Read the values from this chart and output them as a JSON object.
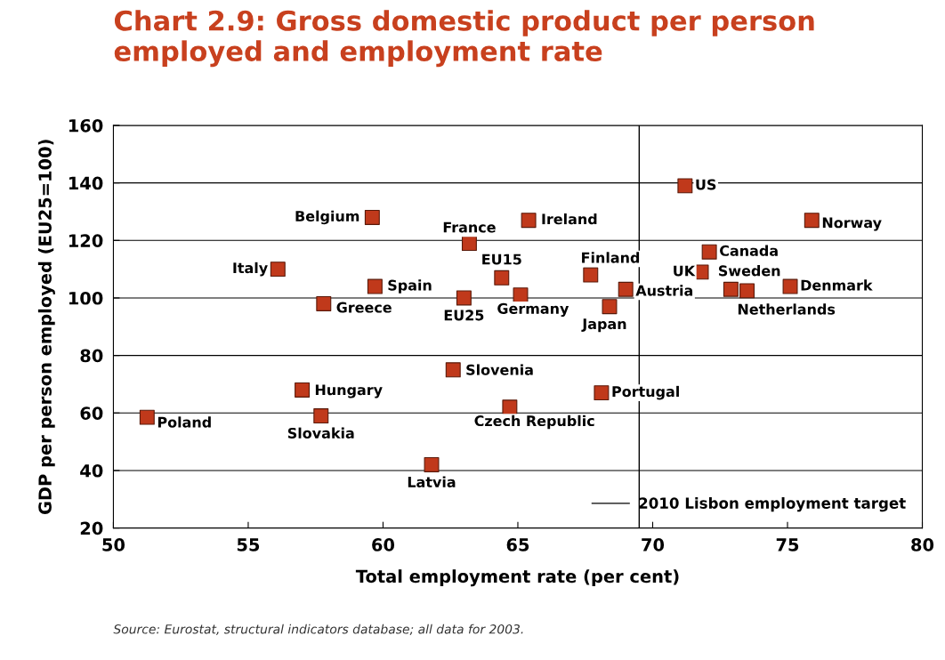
{
  "chart_data": {
    "type": "scatter",
    "title": "Chart 2.9: Gross domestic product per person employed and employment rate",
    "xlabel": "Total employment rate (per cent)",
    "ylabel": "GDP per person employed (EU25=100)",
    "xlim": [
      50,
      80
    ],
    "xticks": [
      50,
      55,
      60,
      65,
      70,
      75,
      80
    ],
    "ylim": [
      20,
      160
    ],
    "yticks": [
      20,
      40,
      60,
      80,
      100,
      120,
      140,
      160
    ],
    "grid": "y",
    "marker": "square",
    "legend": "bottom right",
    "ref_lines": [
      {
        "axis": "x",
        "value": 69.5,
        "label": "2010 Lisbon employment target",
        "color": "#000000"
      }
    ],
    "annotations": [
      "Source: Eurostat, structural indicators database; all data for 2003."
    ],
    "series": [
      {
        "name": "Poland",
        "color": "#c0391b",
        "x": [
          51.25
        ],
        "values": [
          58.5
        ]
      },
      {
        "name": "Italy",
        "color": "#c0391b",
        "x": [
          56.1
        ],
        "values": [
          110
        ]
      },
      {
        "name": "Belgium",
        "color": "#c0391b",
        "x": [
          59.6
        ],
        "values": [
          128
        ]
      },
      {
        "name": "Greece",
        "color": "#c0391b",
        "x": [
          57.8
        ],
        "values": [
          98
        ]
      },
      {
        "name": "Spain",
        "color": "#c0391b",
        "x": [
          59.7
        ],
        "values": [
          104
        ]
      },
      {
        "name": "Hungary",
        "color": "#c0391b",
        "x": [
          57.0
        ],
        "values": [
          68
        ]
      },
      {
        "name": "Slovakia",
        "color": "#c0391b",
        "x": [
          57.7
        ],
        "values": [
          59
        ]
      },
      {
        "name": "Latvia",
        "color": "#c0391b",
        "x": [
          61.8
        ],
        "values": [
          42
        ]
      },
      {
        "name": "Slovenia",
        "color": "#c0391b",
        "x": [
          62.6
        ],
        "values": [
          75
        ]
      },
      {
        "name": "France",
        "color": "#c0391b",
        "x": [
          63.2
        ],
        "values": [
          119
        ]
      },
      {
        "name": "EU25",
        "color": "#c0391b",
        "x": [
          63.0
        ],
        "values": [
          100
        ]
      },
      {
        "name": "EU15",
        "color": "#c0391b",
        "x": [
          64.4
        ],
        "values": [
          107
        ]
      },
      {
        "name": "Ireland",
        "color": "#c0391b",
        "x": [
          65.4
        ],
        "values": [
          127
        ]
      },
      {
        "name": "Germany",
        "color": "#c0391b",
        "x": [
          65.1
        ],
        "values": [
          101
        ]
      },
      {
        "name": "Czech Republic",
        "color": "#c0391b",
        "x": [
          64.7
        ],
        "values": [
          62
        ]
      },
      {
        "name": "Finland",
        "color": "#c0391b",
        "x": [
          67.7
        ],
        "values": [
          108
        ]
      },
      {
        "name": "Japan",
        "color": "#c0391b",
        "x": [
          68.4
        ],
        "values": [
          97
        ]
      },
      {
        "name": "Portugal",
        "color": "#c0391b",
        "x": [
          68.1
        ],
        "values": [
          67
        ]
      },
      {
        "name": "Austria",
        "color": "#c0391b",
        "x": [
          69.0
        ],
        "values": [
          103
        ]
      },
      {
        "name": "US",
        "color": "#c0391b",
        "x": [
          71.2
        ],
        "values": [
          139
        ]
      },
      {
        "name": "Canada",
        "color": "#c0391b",
        "x": [
          72.1
        ],
        "values": [
          116
        ]
      },
      {
        "name": "UK",
        "color": "#c0391b",
        "x": [
          71.8
        ],
        "values": [
          109
        ]
      },
      {
        "name": "Sweden",
        "color": "#c0391b",
        "x": [
          72.9
        ],
        "values": [
          103
        ]
      },
      {
        "name": "Netherlands",
        "color": "#c0391b",
        "x": [
          73.5
        ],
        "values": [
          102.5
        ]
      },
      {
        "name": "Denmark",
        "color": "#c0391b",
        "x": [
          75.1
        ],
        "values": [
          104
        ]
      },
      {
        "name": "Norway",
        "color": "#c0391b",
        "x": [
          75.9
        ],
        "values": [
          127
        ]
      }
    ]
  }
}
